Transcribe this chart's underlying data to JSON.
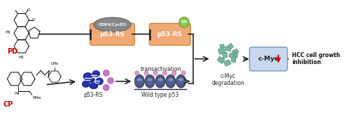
{
  "bg_color": "#ffffff",
  "fig_width": 5.0,
  "fig_height": 1.81,
  "dpi": 100,
  "PD_label": "PD",
  "CP_label": "CP",
  "CDK_label": "CDK4/CycD1",
  "p53RS_top_label": "p53-RS",
  "p53RS_top2_label": "p53-RS",
  "OH_label": "OH",
  "p53RS_bot_label": "p53-RS",
  "wild_label": "Wild type p53",
  "transact_label": "transactivation",
  "cMyc_deg_label": "c-Myc\ndegradation",
  "cMyc_box_label": "c-Myc",
  "HCC_label": "HCC cell growth\ninhibition",
  "PD_color": "#cc0000",
  "CP_color": "#cc0000",
  "cdk_fill": "#888888",
  "cdk_edge": "#555555",
  "p53_fill": "#f0a875",
  "p53_edge": "#d08030",
  "cMyc_box_fill_top": "#dde8f5",
  "cMyc_box_fill_bot": "#a8bcd8",
  "cMyc_box_edge": "#7799bb",
  "cMyc_red_arrow": "#cc0000",
  "p53RS_bot_fill": "#2233aa",
  "wild_p53_dark": "#334477",
  "wild_p53_light": "#556699",
  "cMyc_deg_fill": "#7ab8a0",
  "cMyc_deg_edge": "#4a8870",
  "dots_color": "#cc77cc",
  "arrow_color": "#222222",
  "oh_fill": "#88cc44",
  "oh_edge": "#448822"
}
